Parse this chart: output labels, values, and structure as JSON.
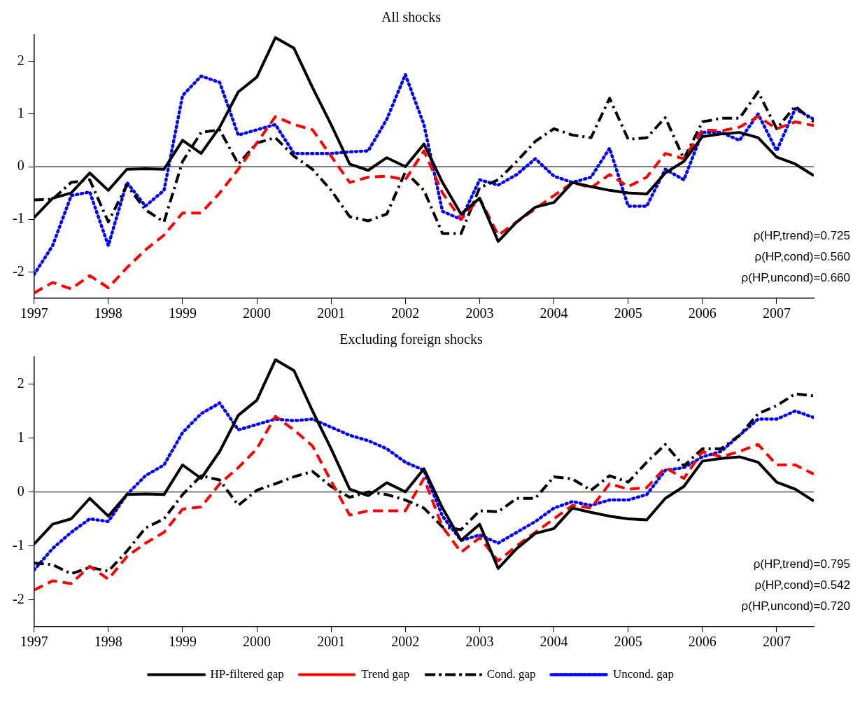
{
  "chart_data": [
    {
      "type": "line",
      "title": "All shocks",
      "x": [
        1997,
        1997.25,
        1997.5,
        1997.75,
        1998,
        1998.25,
        1998.5,
        1998.75,
        1999,
        1999.25,
        1999.5,
        1999.75,
        2000,
        2000.25,
        2000.5,
        2000.75,
        2001,
        2001.25,
        2001.5,
        2001.75,
        2002,
        2002.25,
        2002.5,
        2002.75,
        2003,
        2003.25,
        2003.5,
        2003.75,
        2004,
        2004.25,
        2004.5,
        2004.75,
        2005,
        2005.25,
        2005.5,
        2005.75,
        2006,
        2006.25,
        2006.5,
        2006.75,
        2007,
        2007.25,
        2007.5
      ],
      "xlim": [
        1997,
        2007.5
      ],
      "xticks": [
        1997,
        1998,
        1999,
        2000,
        2001,
        2002,
        2003,
        2004,
        2005,
        2006,
        2007
      ],
      "ylim": [
        -2.5,
        2.5
      ],
      "yticks": [
        -2,
        -1,
        0,
        1,
        2
      ],
      "grid": false,
      "legend": false,
      "marker": "none",
      "ref_lines": [
        {
          "axis": "y",
          "value": 0,
          "color": "#808080"
        }
      ],
      "annotations": [
        "ρ(HP,trend)=0.725",
        "ρ(HP,cond)=0.560",
        "ρ(HP,uncond)=0.660"
      ],
      "series": [
        {
          "color": "#000000",
          "line_style": "solid",
          "values": [
            -0.97,
            -0.6,
            -0.5,
            -0.12,
            -0.45,
            -0.05,
            -0.04,
            -0.05,
            0.5,
            0.25,
            0.75,
            1.42,
            1.7,
            2.45,
            2.25,
            1.5,
            0.8,
            0.05,
            -0.07,
            0.17,
            0,
            0.43,
            -0.3,
            -0.9,
            -0.6,
            -1.42,
            -1.05,
            -0.77,
            -0.68,
            -0.3,
            -0.38,
            -0.45,
            -0.5,
            -0.52,
            -0.12,
            0.1,
            0.57,
            0.62,
            0.65,
            0.55,
            0.18,
            0.05,
            -0.17
          ]
        },
        {
          "color": "#ff0000",
          "line_style": "dashed",
          "values": [
            -2.4,
            -2.2,
            -2.32,
            -2.07,
            -2.3,
            -1.92,
            -1.58,
            -1.3,
            -0.88,
            -0.88,
            -0.5,
            -0.05,
            0.45,
            0.95,
            0.8,
            0.7,
            0.2,
            -0.3,
            -0.2,
            -0.18,
            -0.25,
            0.3,
            -0.5,
            -1,
            -0.6,
            -1.3,
            -1.05,
            -0.8,
            -0.55,
            -0.3,
            -0.4,
            -0.15,
            -0.38,
            -0.2,
            0.25,
            0.15,
            0.7,
            0.68,
            0.75,
            0.95,
            0.72,
            0.85,
            0.78
          ]
        },
        {
          "color": "#000000",
          "line_style": "dashdot",
          "values": [
            -0.63,
            -0.62,
            -0.3,
            -0.25,
            -1.05,
            -0.35,
            -0.82,
            -1.05,
            0.1,
            0.65,
            0.7,
            0.05,
            0.45,
            0.55,
            0.2,
            -0.05,
            -0.45,
            -0.95,
            -1.03,
            -0.9,
            -0.1,
            -0.45,
            -1.27,
            -1.27,
            -0.4,
            -0.25,
            0.1,
            0.48,
            0.72,
            0.6,
            0.55,
            1.3,
            0.52,
            0.55,
            0.93,
            0.15,
            0.85,
            0.92,
            0.92,
            1.42,
            0.72,
            1.15,
            0.85
          ]
        },
        {
          "color": "#0000ff",
          "line_style": "dotted",
          "values": [
            -2.05,
            -1.5,
            -0.55,
            -0.48,
            -1.5,
            -0.3,
            -0.75,
            -0.45,
            1.35,
            1.72,
            1.6,
            0.6,
            0.7,
            0.8,
            0.25,
            0.25,
            0.25,
            0.28,
            0.3,
            0.9,
            1.75,
            0.8,
            -0.85,
            -1,
            -0.25,
            -0.35,
            -0.15,
            0.15,
            -0.18,
            -0.3,
            -0.2,
            0.35,
            -0.75,
            -0.75,
            -0.05,
            -0.25,
            0.65,
            0.65,
            0.5,
            1,
            0.3,
            1.1,
            0.9
          ]
        }
      ]
    },
    {
      "type": "line",
      "title": "Excluding foreign shocks",
      "x": [
        1997,
        1997.25,
        1997.5,
        1997.75,
        1998,
        1998.25,
        1998.5,
        1998.75,
        1999,
        1999.25,
        1999.5,
        1999.75,
        2000,
        2000.25,
        2000.5,
        2000.75,
        2001,
        2001.25,
        2001.5,
        2001.75,
        2002,
        2002.25,
        2002.5,
        2002.75,
        2003,
        2003.25,
        2003.5,
        2003.75,
        2004,
        2004.25,
        2004.5,
        2004.75,
        2005,
        2005.25,
        2005.5,
        2005.75,
        2006,
        2006.25,
        2006.5,
        2006.75,
        2007,
        2007.25,
        2007.5
      ],
      "xlim": [
        1997,
        2007.5
      ],
      "xticks": [
        1997,
        1998,
        1999,
        2000,
        2001,
        2002,
        2003,
        2004,
        2005,
        2006,
        2007
      ],
      "ylim": [
        -2.5,
        2.5
      ],
      "yticks": [
        -2,
        -1,
        0,
        1,
        2
      ],
      "grid": false,
      "legend": "bottom",
      "marker": "none",
      "ref_lines": [
        {
          "axis": "y",
          "value": 0,
          "color": "#808080"
        }
      ],
      "annotations": [
        "ρ(HP,trend)=0.795",
        "ρ(HP,cond)=0.542",
        "ρ(HP,uncond)=0.720"
      ],
      "series": [
        {
          "name": "HP-filtered gap",
          "color": "#000000",
          "line_style": "solid",
          "values": [
            -0.97,
            -0.6,
            -0.5,
            -0.12,
            -0.45,
            -0.05,
            -0.04,
            -0.05,
            0.5,
            0.25,
            0.75,
            1.42,
            1.7,
            2.45,
            2.25,
            1.5,
            0.8,
            0.05,
            -0.07,
            0.17,
            0,
            0.43,
            -0.3,
            -0.9,
            -0.6,
            -1.42,
            -1.05,
            -0.77,
            -0.68,
            -0.3,
            -0.38,
            -0.45,
            -0.5,
            -0.52,
            -0.12,
            0.1,
            0.57,
            0.62,
            0.65,
            0.55,
            0.18,
            0.05,
            -0.17
          ]
        },
        {
          "name": "Trend gap",
          "color": "#ff0000",
          "line_style": "dashed",
          "values": [
            -1.82,
            -1.65,
            -1.7,
            -1.38,
            -1.62,
            -1.2,
            -0.95,
            -0.75,
            -0.32,
            -0.28,
            0.15,
            0.45,
            0.8,
            1.4,
            1.15,
            0.85,
            0.2,
            -0.43,
            -0.35,
            -0.35,
            -0.35,
            0.25,
            -0.65,
            -1.12,
            -0.85,
            -1.28,
            -1,
            -0.75,
            -0.5,
            -0.25,
            -0.3,
            0.15,
            0.05,
            0.08,
            0.45,
            0.25,
            0.75,
            0.65,
            0.75,
            0.88,
            0.5,
            0.5,
            0.33
          ]
        },
        {
          "name": "Cond. gap",
          "color": "#000000",
          "line_style": "dashdot",
          "values": [
            -1.32,
            -1.35,
            -1.52,
            -1.4,
            -1.47,
            -1.1,
            -0.67,
            -0.5,
            -0.05,
            0.3,
            0.22,
            -0.25,
            0.03,
            0.15,
            0.28,
            0.38,
            0.1,
            -0.1,
            0,
            -0.05,
            -0.15,
            -0.3,
            -0.65,
            -0.7,
            -0.35,
            -0.37,
            -0.12,
            -0.12,
            0.28,
            0.24,
            0.03,
            0.3,
            0.18,
            0.55,
            0.88,
            0.48,
            0.8,
            0.8,
            1.05,
            1.45,
            1.6,
            1.82,
            1.78
          ]
        },
        {
          "name": "Uncond. gap",
          "color": "#0000ff",
          "line_style": "dotted",
          "values": [
            -1.45,
            -1.05,
            -0.75,
            -0.5,
            -0.55,
            -0.05,
            0.3,
            0.5,
            1.1,
            1.45,
            1.65,
            1.15,
            1.25,
            1.35,
            1.32,
            1.35,
            1.2,
            1.05,
            0.95,
            0.8,
            0.55,
            0.4,
            -0.45,
            -0.9,
            -0.8,
            -0.95,
            -0.75,
            -0.55,
            -0.3,
            -0.18,
            -0.25,
            -0.15,
            -0.15,
            -0.05,
            0.4,
            0.45,
            0.65,
            0.75,
            1.05,
            1.35,
            1.35,
            1.5,
            1.38
          ]
        }
      ]
    }
  ]
}
